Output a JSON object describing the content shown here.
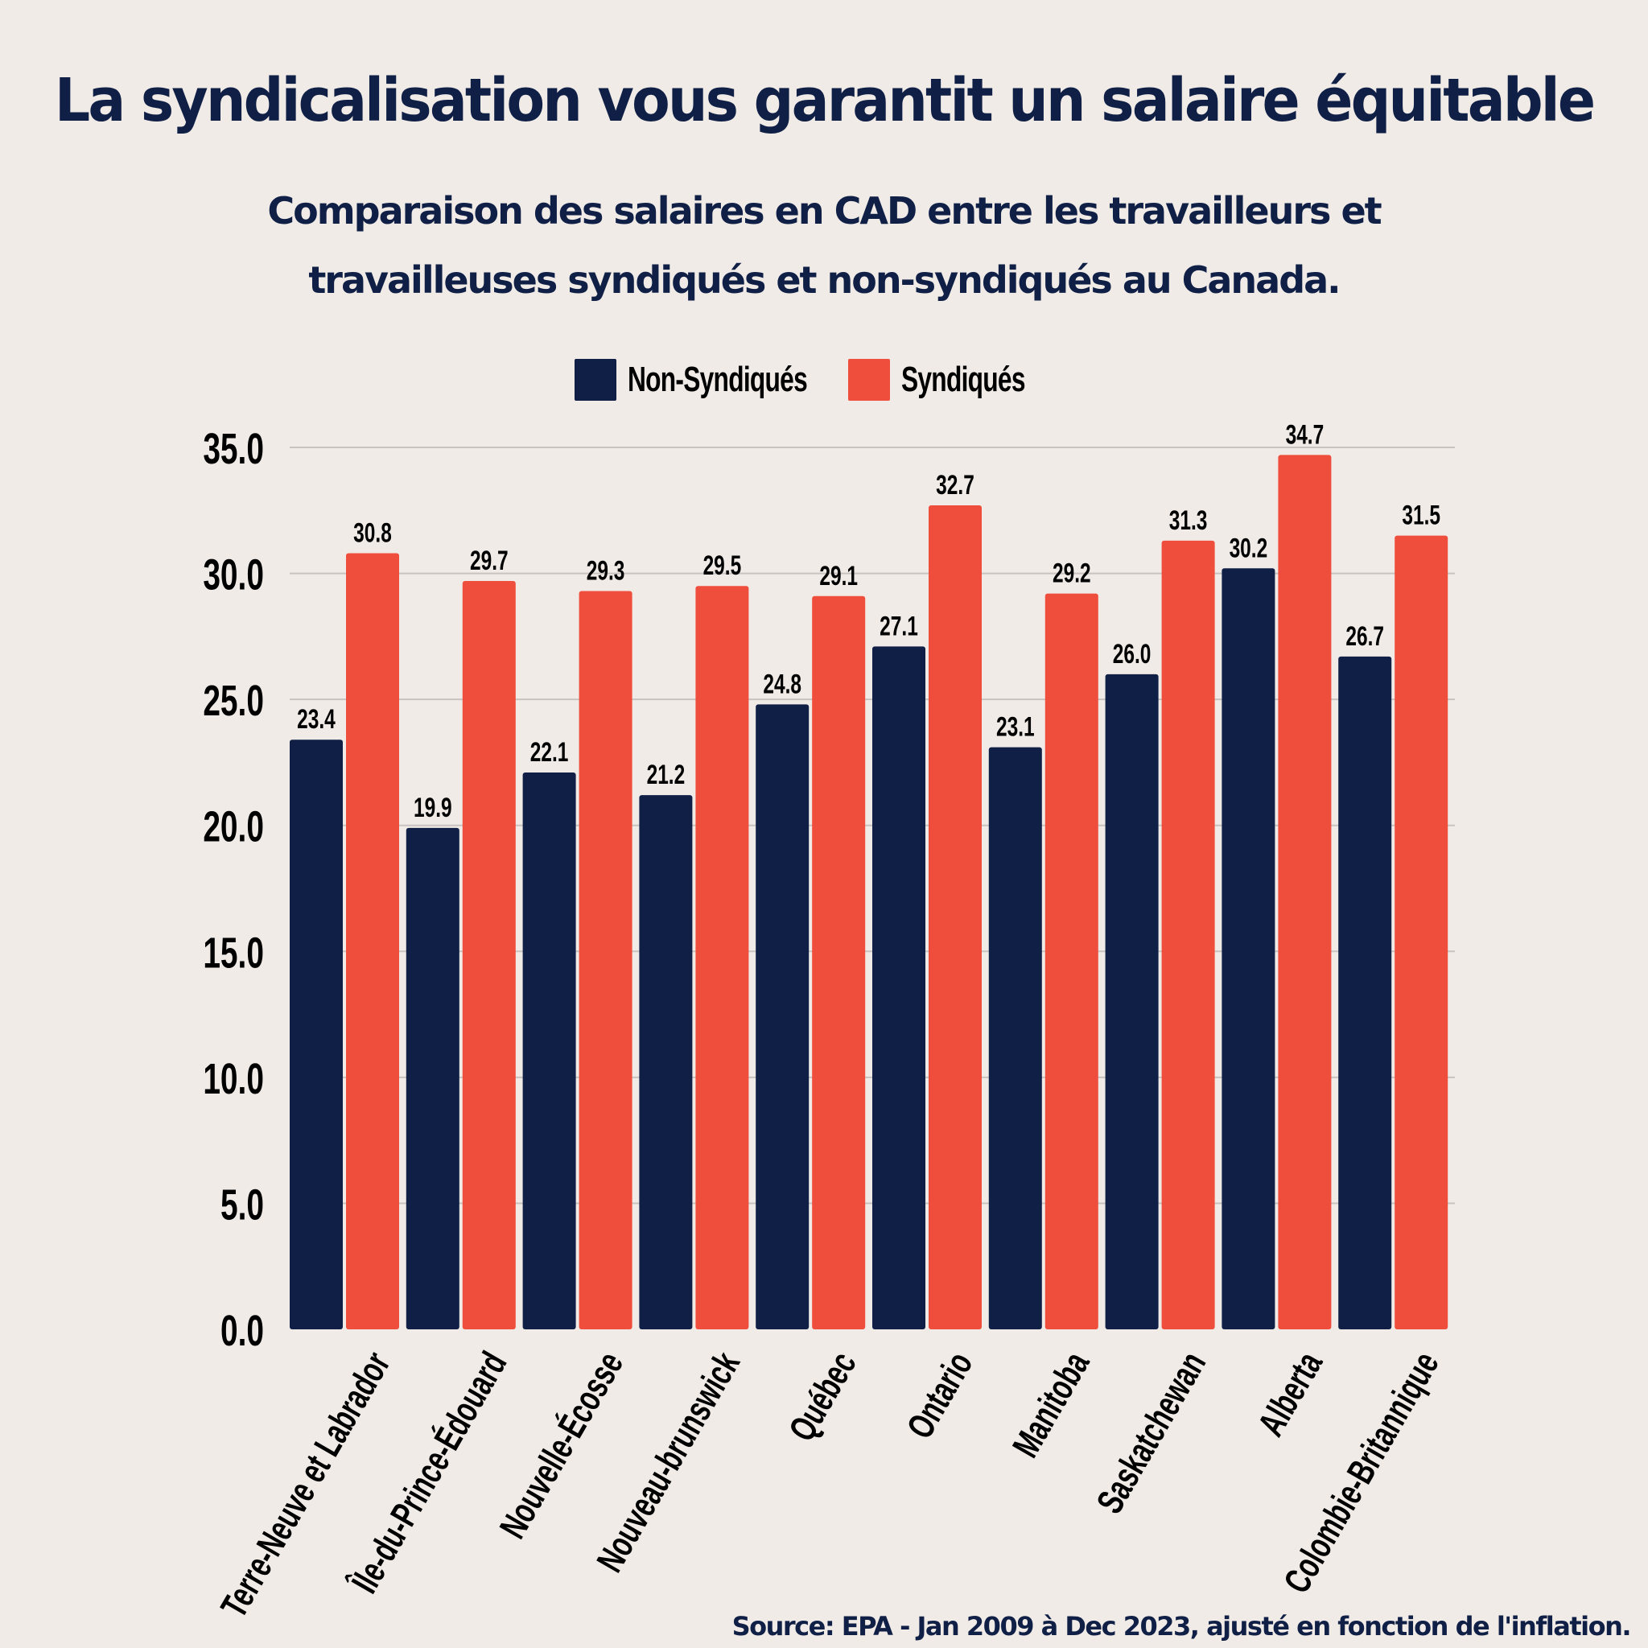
{
  "title": "La syndicalisation vous garantit un salaire équitable",
  "subtitle_lines": [
    "Comparaison des salaires en CAD entre les travailleurs et",
    "travailleuses syndiqués et non-syndiqués au Canada."
  ],
  "source": "Source: EPA -  Jan 2009  à Dec 2023, ajusté en fonction de l'inflation.",
  "colors": {
    "background": "#f0ebe7",
    "non_syndiques": "#0f1f45",
    "syndiques": "#f04e3c",
    "gridline": "#c8c3c0",
    "text_dark": "#0f1f45"
  },
  "chart_data": {
    "type": "bar",
    "title": "La syndicalisation vous garantit un salaire équitable",
    "subtitle": "Comparaison des salaires en CAD entre les travailleurs et travailleuses syndiqués et non-syndiqués au Canada.",
    "xlabel": "",
    "ylabel": "",
    "ylim": [
      0,
      35
    ],
    "yticks": [
      "0.0",
      "5.0",
      "10.0",
      "15.0",
      "20.0",
      "25.0",
      "30.0",
      "35.0"
    ],
    "grid": true,
    "legend_position": "top-center",
    "categories": [
      "Terre-Neuve et Labrador",
      "Île-du-Prince-Édouard",
      "Nouvelle-Écosse",
      "Nouveau-brunswick",
      "Québec",
      "Ontario",
      "Manitoba",
      "Saskatchewan",
      "Alberta",
      "Colombie-Britannique"
    ],
    "series": [
      {
        "name": "Non-Syndiqués",
        "color": "#0f1f45",
        "values": [
          23.4,
          19.9,
          22.1,
          21.2,
          24.8,
          27.1,
          23.1,
          26.0,
          30.2,
          26.7
        ],
        "labels": [
          "23.4",
          "19.9",
          "22.1",
          "21.2",
          "24.8",
          "27.1",
          "23.1",
          "26.0",
          "30.2",
          "26.7"
        ]
      },
      {
        "name": "Syndiqués",
        "color": "#f04e3c",
        "values": [
          30.8,
          29.7,
          29.3,
          29.5,
          29.1,
          32.7,
          29.2,
          31.3,
          34.7,
          31.5
        ],
        "labels": [
          "30.8",
          "29.7",
          "29.3",
          "29.5",
          "29.1",
          "32.7",
          "29.2",
          "31.3",
          "34.7",
          "31.5"
        ]
      }
    ]
  }
}
